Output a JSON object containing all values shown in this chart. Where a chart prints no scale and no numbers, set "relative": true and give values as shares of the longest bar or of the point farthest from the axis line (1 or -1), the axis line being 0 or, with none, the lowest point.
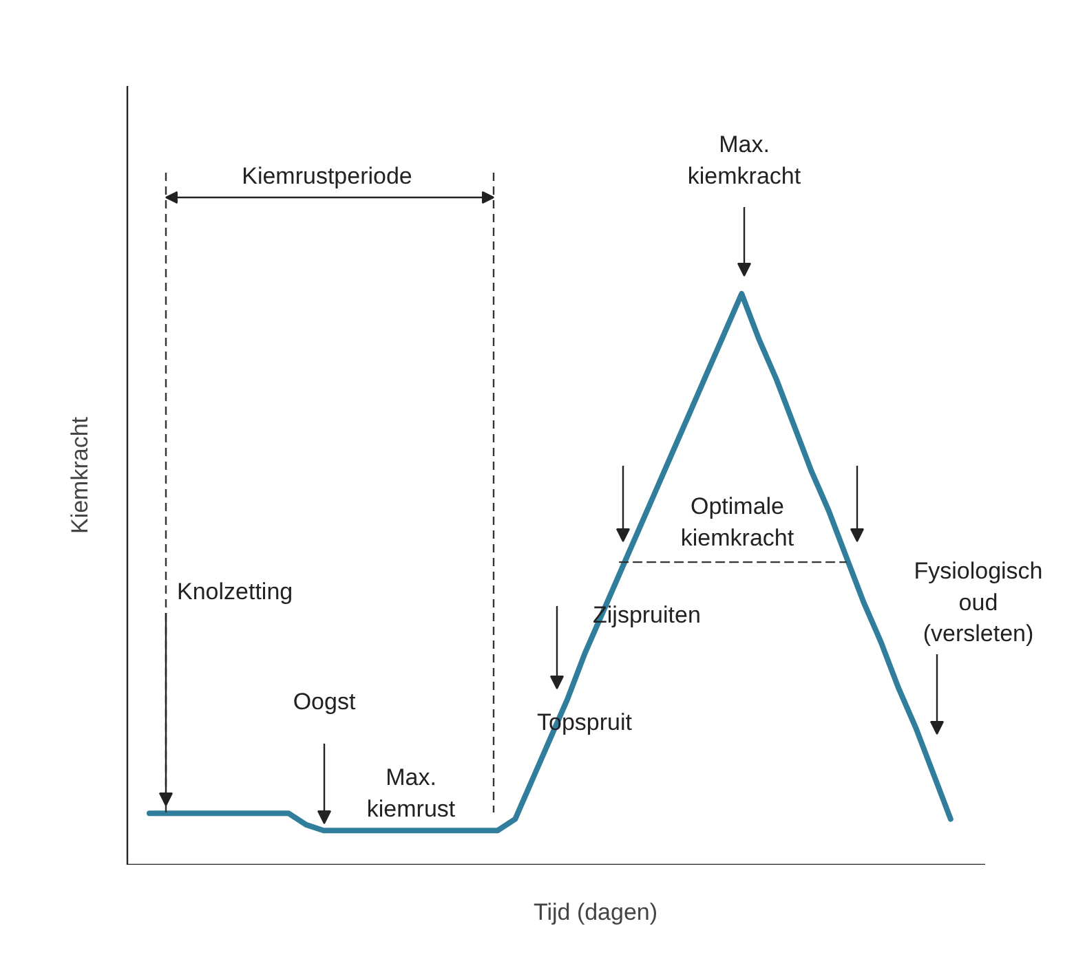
{
  "chart_data": {
    "type": "line",
    "relative": true,
    "xlabel": "Tijd (dagen)",
    "ylabel": "Kiemkracht",
    "tick_labels": false,
    "categories": [
      null,
      null,
      null,
      null,
      null,
      null,
      null,
      null,
      null,
      null,
      null,
      null,
      null,
      null,
      null,
      null,
      null,
      null,
      null,
      null,
      null,
      null,
      null,
      null,
      null,
      null,
      null,
      null,
      null,
      null,
      null,
      null,
      null,
      null,
      null,
      null,
      null,
      null,
      null,
      null,
      null,
      null,
      null,
      null,
      null,
      null,
      null
    ],
    "series": [
      {
        "color": "#317e9c",
        "values": [
          0.09,
          0.09,
          0.09,
          0.09,
          0.09,
          0.09,
          0.09,
          0.09,
          0.09,
          0.07,
          0.06,
          0.06,
          0.06,
          0.06,
          0.06,
          0.06,
          0.06,
          0.06,
          0.06,
          0.06,
          0.06,
          0.08,
          0.15,
          0.22,
          0.29,
          0.37,
          0.44,
          0.51,
          0.58,
          0.65,
          0.72,
          0.79,
          0.86,
          0.93,
          1,
          0.92,
          0.85,
          0.77,
          0.69,
          0.62,
          0.54,
          0.46,
          0.39,
          0.31,
          0.24,
          0.16,
          0.08
        ]
      },
      {
        "color": "#333333",
        "line_style": "dashed",
        "values": [
          null,
          null,
          null,
          null,
          null,
          null,
          null,
          null,
          null,
          null,
          null,
          null,
          null,
          null,
          null,
          null,
          null,
          null,
          null,
          null,
          null,
          null,
          null,
          null,
          null,
          null,
          null,
          0.53,
          0.53,
          0.53,
          0.53,
          0.53,
          0.53,
          0.53,
          0.53,
          0.53,
          0.53,
          0.53,
          0.53,
          0.53,
          0.53,
          null,
          null,
          null,
          null,
          null,
          null
        ]
      }
    ],
    "annotations": [
      "Kiemrustperiode",
      "Knolzetting",
      "Oogst",
      "Max.\nkiemrust",
      "Topspruit",
      "Zijspruiten",
      "Max.\nkiemkracht",
      "Optimale\nkiemkracht",
      "Fysiologisch\noud\n(versleten)"
    ]
  }
}
